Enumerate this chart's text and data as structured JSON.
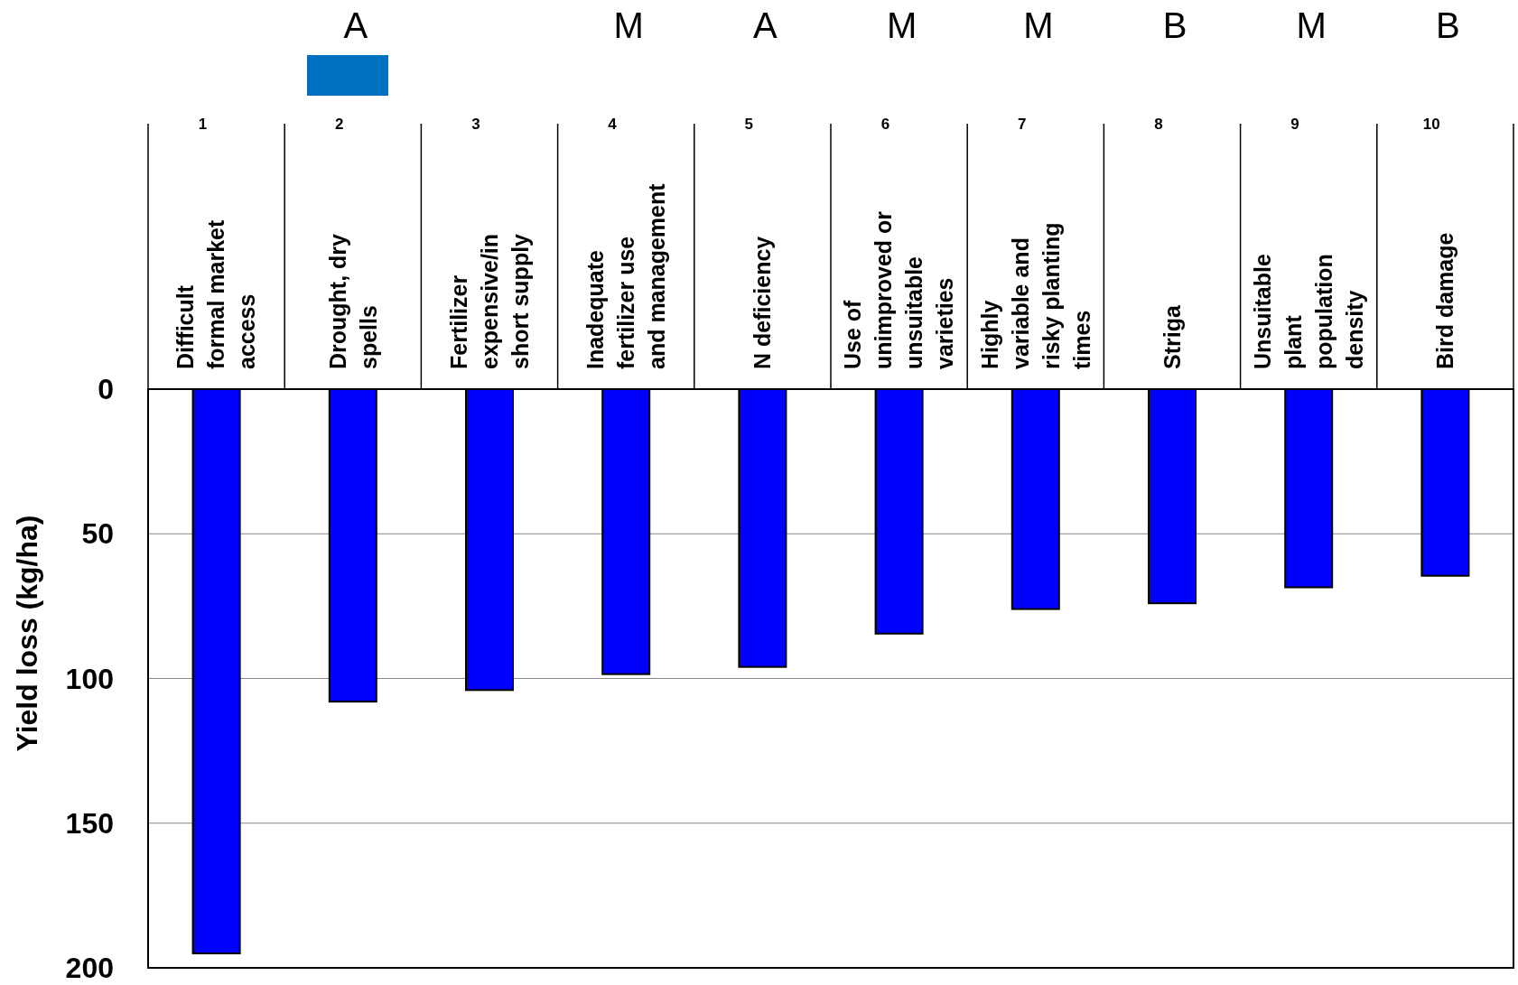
{
  "chart_data": {
    "type": "bar",
    "ylabel": "Yield loss (kg/ha)",
    "categories": [
      "Difficult formal market access",
      "Drought, dry spells",
      "Fertilizer expensive/in short supply",
      "Inadequate fertilizer use and management",
      "N deficiency",
      "Use of unimproved or unsuitable varieties",
      "Highly variable and risky planting times",
      "Striga",
      "Unsuitable plant population density",
      "Bird damage"
    ],
    "values": [
      195,
      108,
      104,
      98.5,
      96,
      84.5,
      76,
      74,
      68.5,
      64.5
    ],
    "color": "#0000ff",
    "ylim": [
      200,
      0
    ],
    "yticks": [
      0,
      50,
      100,
      150,
      200
    ],
    "grid": "y",
    "annotations": [
      "1",
      "2",
      "3",
      "4",
      "5",
      "6",
      "7",
      "8",
      "9",
      "10",
      "A",
      "M",
      "A",
      "M",
      "M",
      "B",
      "M",
      "B"
    ]
  }
}
